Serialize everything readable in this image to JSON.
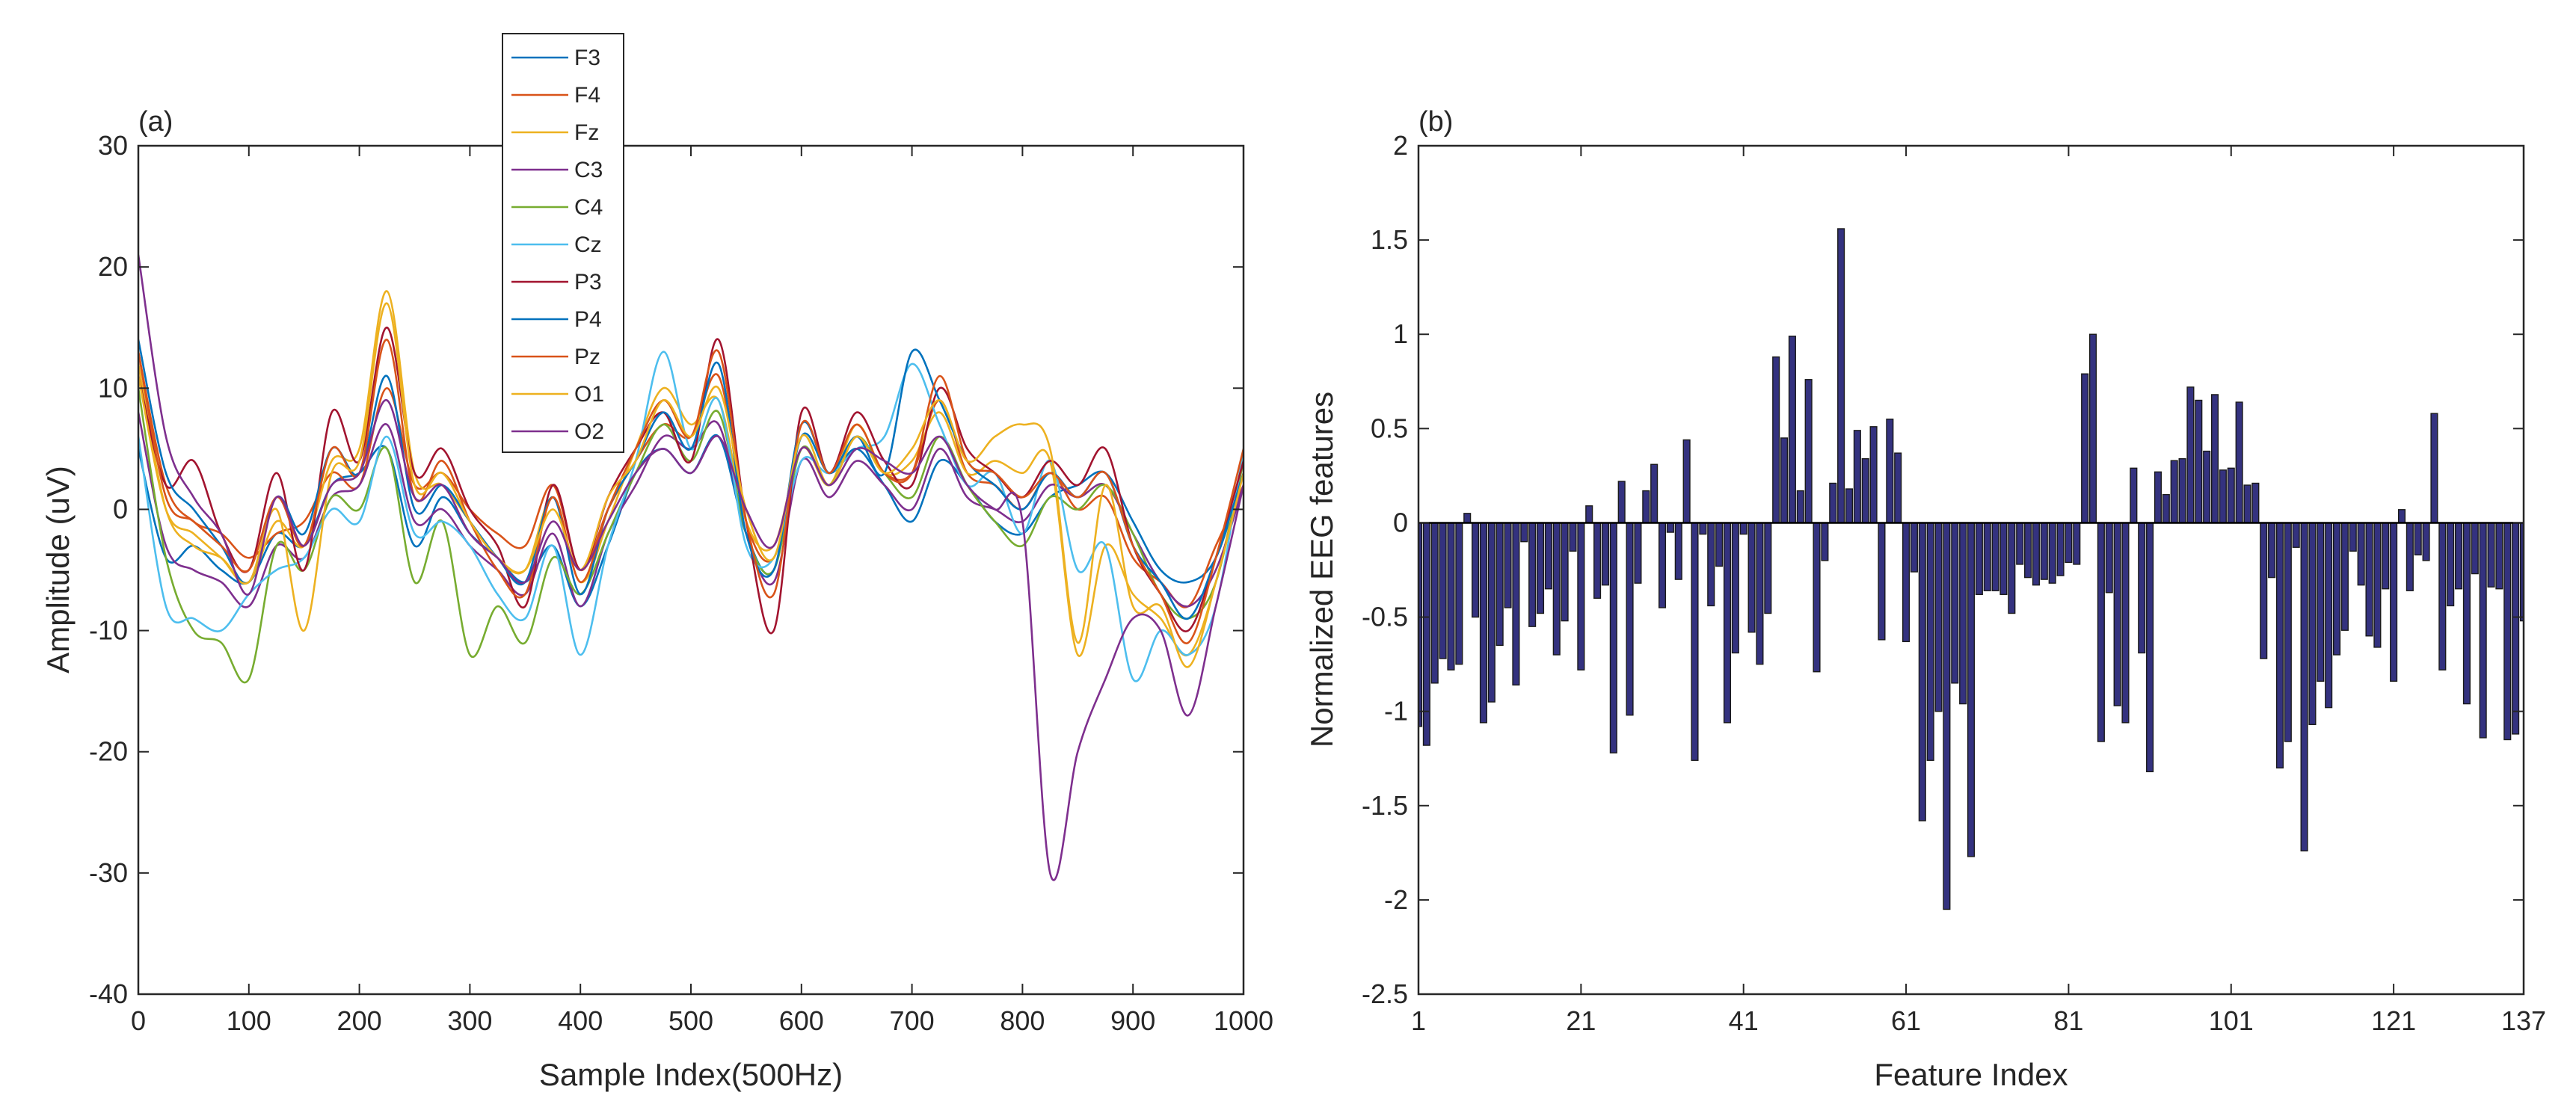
{
  "colors": {
    "F3": "#0072BD",
    "F4": "#D95319",
    "Fz": "#EDB120",
    "C3": "#7E2F8E",
    "C4": "#77AC30",
    "Cz": "#4DBEEE",
    "P3": "#A2142F",
    "P4": "#0072BD",
    "Pz": "#D95319",
    "O1": "#EDB120",
    "O2": "#7E2F8E",
    "bar_fill": "#34327F",
    "bar_edge": "#1a1a1a",
    "axis": "#262626"
  },
  "chart_data": [
    {
      "type": "line",
      "panel_label": "(a)",
      "xlabel": "Sample Index(500Hz)",
      "ylabel": "Amplitude (uV)",
      "xlim": [
        0,
        1000
      ],
      "ylim": [
        -40,
        30
      ],
      "xticks": [
        0,
        100,
        200,
        300,
        400,
        500,
        600,
        700,
        800,
        900,
        1000
      ],
      "yticks": [
        -40,
        -30,
        -20,
        -10,
        0,
        10,
        20,
        30
      ],
      "xtick_labels": [
        "0",
        "100",
        "200",
        "300",
        "400",
        "500",
        "600",
        "700",
        "800",
        "900",
        "1000"
      ],
      "ytick_labels": [
        "-40",
        "-30",
        "-20",
        "-10",
        "0",
        "10",
        "20",
        "30"
      ],
      "legend_position": "top-center",
      "x": [
        0,
        25,
        50,
        75,
        100,
        125,
        150,
        175,
        200,
        225,
        250,
        275,
        300,
        325,
        350,
        375,
        400,
        425,
        450,
        475,
        500,
        525,
        550,
        575,
        600,
        625,
        650,
        675,
        700,
        725,
        750,
        775,
        800,
        825,
        850,
        875,
        900,
        925,
        950,
        975,
        1000
      ],
      "series": [
        {
          "name": "F3",
          "values": [
            5,
            -4,
            -3,
            -5,
            -6,
            -2,
            -3,
            2,
            3,
            5,
            -3,
            1,
            -2,
            -4,
            -6,
            -3,
            -8,
            -3,
            3,
            5,
            3,
            6,
            -2,
            -5,
            6,
            3,
            5,
            2,
            -1,
            4,
            2,
            -1,
            -2,
            1,
            2,
            3,
            -1,
            -5,
            -6,
            -4,
            3
          ]
        },
        {
          "name": "F4",
          "values": [
            13,
            2,
            -1,
            -2,
            -4,
            -2,
            -1,
            3,
            2,
            10,
            2,
            3,
            0,
            -2,
            -3,
            2,
            -5,
            0,
            4,
            7,
            6,
            11,
            -1,
            -4,
            5,
            2,
            6,
            3,
            3,
            9,
            3,
            2,
            0,
            3,
            0,
            1,
            -4,
            -6,
            -8,
            -3,
            2
          ]
        },
        {
          "name": "Fz",
          "values": [
            12,
            0,
            -3,
            -4,
            -6,
            -1,
            -3,
            4,
            5,
            18,
            3,
            2,
            -1,
            -4,
            -5,
            1,
            -6,
            -1,
            5,
            10,
            7,
            9,
            -1,
            -3,
            5,
            2,
            7,
            3,
            4,
            8,
            3,
            4,
            3,
            4,
            -12,
            -3,
            -7,
            -9,
            -12,
            -6,
            4
          ]
        },
        {
          "name": "C3",
          "values": [
            8,
            -3,
            -5,
            -6,
            -8,
            -3,
            -4,
            1,
            2,
            7,
            -1,
            0,
            -3,
            -5,
            -7,
            -2,
            -8,
            -2,
            2,
            6,
            5,
            7,
            -2,
            -6,
            4,
            1,
            4,
            2,
            0,
            5,
            1,
            0,
            -1,
            2,
            1,
            2,
            -2,
            -6,
            -8,
            -5,
            2
          ]
        },
        {
          "name": "C4",
          "values": [
            10,
            -4,
            -10,
            -11,
            -14,
            -3,
            -5,
            1,
            0,
            5,
            -6,
            -1,
            -12,
            -8,
            -11,
            -4,
            -7,
            -2,
            3,
            7,
            4,
            8,
            -2,
            -5,
            5,
            2,
            6,
            3,
            1,
            6,
            2,
            -1,
            -3,
            1,
            0,
            2,
            -2,
            -7,
            -9,
            -6,
            4
          ]
        },
        {
          "name": "Cz",
          "values": [
            6,
            -8,
            -9,
            -10,
            -7,
            -5,
            -4,
            0,
            -1,
            6,
            -2,
            -1,
            -3,
            -7,
            -9,
            -3,
            -12,
            -3,
            4,
            13,
            5,
            9,
            -3,
            -4,
            4,
            3,
            5,
            6,
            12,
            7,
            2,
            3,
            -2,
            4,
            -5,
            -3,
            -14,
            -10,
            -12,
            -8,
            5
          ]
        },
        {
          "name": "P3",
          "values": [
            11,
            2,
            4,
            -2,
            -5,
            3,
            -5,
            8,
            4,
            15,
            3,
            5,
            0,
            -3,
            -8,
            2,
            -5,
            1,
            5,
            8,
            4,
            14,
            -1,
            -10,
            8,
            3,
            8,
            4,
            2,
            10,
            5,
            3,
            1,
            4,
            2,
            5,
            -3,
            -7,
            -10,
            -4,
            4
          ]
        },
        {
          "name": "P4",
          "values": [
            14,
            3,
            0,
            -3,
            -6,
            1,
            -2,
            5,
            3,
            11,
            0,
            2,
            -1,
            -4,
            -6,
            1,
            -7,
            0,
            4,
            8,
            5,
            12,
            -2,
            -5,
            7,
            3,
            6,
            3,
            13,
            9,
            4,
            2,
            0,
            3,
            1,
            3,
            -3,
            -6,
            -9,
            -4,
            3
          ]
        },
        {
          "name": "Pz",
          "values": [
            13,
            1,
            -1,
            -3,
            -5,
            1,
            -3,
            5,
            3,
            14,
            1,
            4,
            -1,
            -5,
            -7,
            1,
            -6,
            0,
            5,
            9,
            6,
            13,
            -1,
            -7,
            7,
            3,
            7,
            3,
            3,
            11,
            4,
            3,
            1,
            3,
            1,
            3,
            -3,
            -7,
            -11,
            -4,
            5
          ]
        },
        {
          "name": "O1",
          "values": [
            11,
            0,
            -2,
            -4,
            -6,
            0,
            -10,
            3,
            4,
            17,
            2,
            3,
            -1,
            -4,
            -5,
            0,
            -5,
            1,
            4,
            9,
            6,
            10,
            0,
            -4,
            6,
            2,
            6,
            3,
            5,
            9,
            4,
            6,
            7,
            5,
            -11,
            2,
            -8,
            -8,
            -13,
            -6,
            3
          ]
        },
        {
          "name": "O2",
          "values": [
            21,
            6,
            1,
            -2,
            -7,
            1,
            -3,
            2,
            3,
            9,
            1,
            2,
            -2,
            -4,
            -6,
            -1,
            -5,
            -1,
            3,
            5,
            3,
            6,
            0,
            -3,
            5,
            2,
            5,
            4,
            3,
            6,
            2,
            0,
            -1,
            -30,
            -20,
            -14,
            -9,
            -10,
            -17,
            -8,
            2
          ]
        }
      ]
    },
    {
      "type": "bar",
      "panel_label": "(b)",
      "xlabel": "Feature Index",
      "ylabel": "Normalized EEG features",
      "xlim": [
        1,
        137
      ],
      "ylim": [
        -2.5,
        2
      ],
      "xticks": [
        1,
        21,
        41,
        61,
        81,
        101,
        121,
        137
      ],
      "xtick_labels": [
        "1",
        "21",
        "41",
        "61",
        "81",
        "101",
        "121",
        "137"
      ],
      "yticks": [
        -2.5,
        -2,
        -1.5,
        -1,
        -0.5,
        0,
        0.5,
        1,
        1.5,
        2
      ],
      "ytick_labels": [
        "-2.5",
        "-2",
        "-1.5",
        "-1",
        "-0.5",
        "0",
        "0.5",
        "1",
        "1.5",
        "2"
      ],
      "x_start": 1,
      "values": [
        -1.08,
        -1.18,
        -0.85,
        -0.72,
        -0.78,
        -0.75,
        0.05,
        -0.5,
        -1.06,
        -0.95,
        -0.65,
        -0.45,
        -0.86,
        -0.1,
        -0.55,
        -0.48,
        -0.35,
        -0.7,
        -0.52,
        -0.15,
        -0.78,
        0.09,
        -0.4,
        -0.33,
        -1.22,
        0.22,
        -1.02,
        -0.32,
        0.17,
        0.31,
        -0.45,
        -0.05,
        -0.3,
        0.44,
        -1.26,
        -0.06,
        -0.44,
        -0.23,
        -1.06,
        -0.69,
        -0.06,
        -0.58,
        -0.75,
        -0.48,
        0.88,
        0.45,
        0.99,
        0.17,
        0.76,
        -0.79,
        -0.2,
        0.21,
        1.56,
        0.18,
        0.49,
        0.34,
        0.51,
        -0.62,
        0.55,
        0.37,
        -0.63,
        -0.26,
        -1.58,
        -1.26,
        -1.0,
        -2.05,
        -0.85,
        -0.96,
        -1.77,
        -0.38,
        -0.36,
        -0.36,
        -0.38,
        -0.48,
        -0.22,
        -0.29,
        -0.33,
        -0.3,
        -0.32,
        -0.28,
        -0.21,
        -0.22,
        0.79,
        1.0,
        -1.16,
        -0.37,
        -0.97,
        -1.06,
        0.29,
        -0.69,
        -1.32,
        0.27,
        0.15,
        0.33,
        0.34,
        0.72,
        0.65,
        0.38,
        0.68,
        0.28,
        0.29,
        0.64,
        0.2,
        0.21,
        -0.72,
        -0.29,
        -1.3,
        -1.16,
        -0.13,
        -1.74,
        -1.07,
        -0.84,
        -0.98,
        -0.7,
        -0.57,
        -0.15,
        -0.33,
        -0.6,
        -0.66,
        -0.35,
        -0.84,
        0.07,
        -0.36,
        -0.17,
        -0.2,
        0.58,
        -0.78,
        -0.44,
        -0.35,
        -0.96,
        -0.27,
        -1.14,
        -0.34,
        -0.35,
        -1.15,
        -1.12,
        -0.52
      ]
    }
  ]
}
